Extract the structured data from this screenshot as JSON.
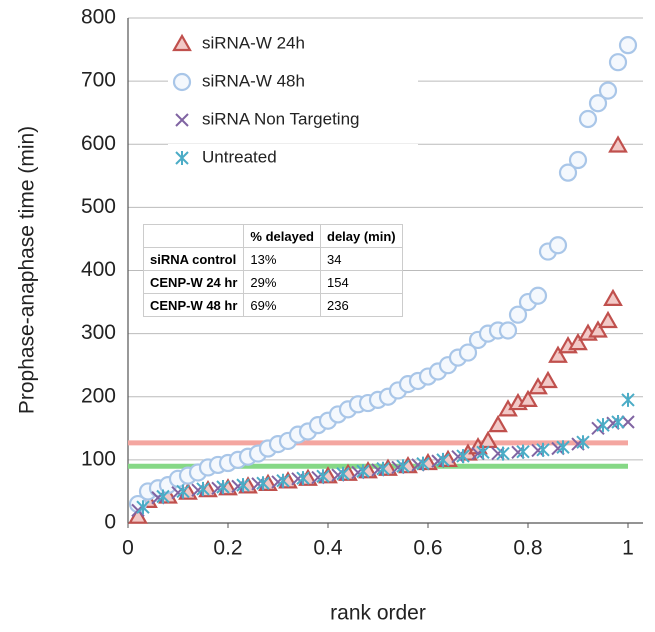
{
  "chart_data": {
    "type": "scatter",
    "xlabel": "rank order",
    "ylabel": "Prophase-anaphase time (min)",
    "xlim": [
      0,
      1.03
    ],
    "ylim": [
      0,
      800
    ],
    "xticks": [
      0,
      0.2,
      0.4,
      0.6,
      0.8,
      1
    ],
    "yticks": [
      0,
      100,
      200,
      300,
      400,
      500,
      600,
      700,
      800
    ],
    "grid": true,
    "legend": "upper left",
    "hlines": [
      {
        "value": 127,
        "color": "#f4a6a0"
      },
      {
        "value": 90,
        "color": "#86d886"
      }
    ],
    "series": [
      {
        "name": "siRNA-W 24h",
        "color": "#c0504d",
        "marker": "triangle",
        "x": [
          0.02,
          0.04,
          0.08,
          0.12,
          0.16,
          0.2,
          0.24,
          0.28,
          0.32,
          0.36,
          0.4,
          0.44,
          0.48,
          0.52,
          0.56,
          0.6,
          0.64,
          0.68,
          0.7,
          0.72,
          0.74,
          0.76,
          0.78,
          0.8,
          0.82,
          0.84,
          0.86,
          0.88,
          0.9,
          0.92,
          0.94,
          0.96,
          0.97,
          0.98
        ],
        "values": [
          10,
          35,
          42,
          48,
          52,
          55,
          58,
          62,
          66,
          70,
          74,
          78,
          82,
          86,
          90,
          95,
          100,
          110,
          120,
          130,
          155,
          180,
          190,
          195,
          215,
          225,
          265,
          280,
          285,
          300,
          305,
          320,
          355,
          598
        ]
      },
      {
        "name": "siRNA-W 48h",
        "color": "#a9c6e8",
        "marker": "circle",
        "x": [
          0.02,
          0.04,
          0.06,
          0.08,
          0.1,
          0.12,
          0.14,
          0.16,
          0.18,
          0.2,
          0.22,
          0.24,
          0.26,
          0.28,
          0.3,
          0.32,
          0.34,
          0.36,
          0.38,
          0.4,
          0.42,
          0.44,
          0.46,
          0.48,
          0.5,
          0.52,
          0.54,
          0.56,
          0.58,
          0.6,
          0.62,
          0.64,
          0.66,
          0.68,
          0.7,
          0.72,
          0.74,
          0.76,
          0.78,
          0.8,
          0.82,
          0.84,
          0.86,
          0.88,
          0.9,
          0.92,
          0.94,
          0.96,
          0.98,
          1.0
        ],
        "values": [
          30,
          50,
          55,
          60,
          70,
          75,
          80,
          88,
          92,
          95,
          100,
          105,
          110,
          118,
          125,
          130,
          140,
          145,
          155,
          162,
          172,
          180,
          188,
          190,
          195,
          200,
          210,
          220,
          225,
          232,
          240,
          250,
          262,
          270,
          290,
          300,
          305,
          305,
          330,
          350,
          360,
          430,
          440,
          555,
          575,
          640,
          665,
          685,
          730,
          757
        ]
      },
      {
        "name": "siRNA Non Targeting",
        "color": "#8064a2",
        "marker": "x",
        "x": [
          0.02,
          0.06,
          0.1,
          0.14,
          0.18,
          0.22,
          0.26,
          0.3,
          0.34,
          0.38,
          0.42,
          0.46,
          0.5,
          0.54,
          0.58,
          0.62,
          0.66,
          0.7,
          0.74,
          0.78,
          0.82,
          0.86,
          0.9,
          0.94,
          0.97,
          1.0
        ],
        "values": [
          20,
          40,
          48,
          52,
          55,
          58,
          62,
          65,
          70,
          72,
          76,
          80,
          84,
          88,
          92,
          98,
          105,
          110,
          110,
          112,
          115,
          118,
          125,
          150,
          158,
          160
        ]
      },
      {
        "name": "Untreated",
        "color": "#4bacc6",
        "marker": "asterisk",
        "x": [
          0.03,
          0.07,
          0.11,
          0.15,
          0.19,
          0.23,
          0.27,
          0.31,
          0.35,
          0.39,
          0.43,
          0.47,
          0.51,
          0.55,
          0.59,
          0.63,
          0.67,
          0.71,
          0.75,
          0.79,
          0.83,
          0.87,
          0.91,
          0.95,
          0.98,
          1.0
        ],
        "values": [
          25,
          42,
          50,
          54,
          57,
          60,
          63,
          67,
          71,
          74,
          78,
          82,
          86,
          90,
          94,
          100,
          106,
          112,
          110,
          113,
          116,
          120,
          128,
          155,
          160,
          195
        ]
      }
    ],
    "table": {
      "header": [
        "% delayed",
        "delay (min)"
      ],
      "rows": [
        [
          "siRNA control",
          "13%",
          "34"
        ],
        [
          "CENP-W 24 hr",
          "29%",
          "154"
        ],
        [
          "CENP-W 48 hr",
          "69%",
          "236"
        ]
      ]
    }
  }
}
